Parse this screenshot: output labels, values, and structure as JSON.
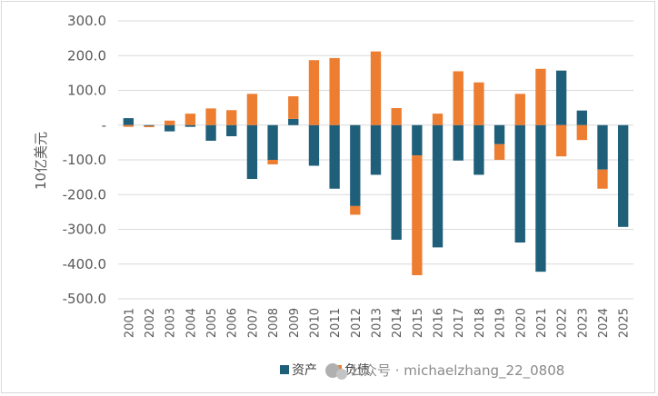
{
  "chart_data": {
    "type": "bar",
    "stacked": true,
    "title": "",
    "xlabel": "",
    "ylabel": "10亿美元",
    "ylim": [
      -500,
      300
    ],
    "yticks": [
      300,
      200,
      100,
      0,
      -100,
      -200,
      -300,
      -400,
      -500
    ],
    "ytick_labels": [
      "300.0",
      "200.0",
      "100.0",
      "-",
      "-100.0",
      "-200.0",
      "-300.0",
      "-400.0",
      "-500.0"
    ],
    "grid": true,
    "legend_position": "bottom",
    "categories": [
      "2001",
      "2002",
      "2003",
      "2004",
      "2005",
      "2006",
      "2007",
      "2008",
      "2009",
      "2010",
      "2011",
      "2012",
      "2013",
      "2014",
      "2015",
      "2016",
      "2017",
      "2018",
      "2019",
      "2020",
      "2021",
      "2022",
      "2023",
      "2024",
      "2025"
    ],
    "series": [
      {
        "name": "资产",
        "color": "#1f5f7a",
        "values": [
          20,
          -2,
          -18,
          -5,
          -45,
          -32,
          -155,
          -100,
          18,
          -117,
          -183,
          -233,
          -143,
          -330,
          -87,
          -352,
          -102,
          -143,
          -55,
          -338,
          -422,
          157,
          42,
          -128,
          -293
        ]
      },
      {
        "name": "负债",
        "color": "#ed7d31",
        "values": [
          -5,
          -4,
          13,
          33,
          48,
          43,
          90,
          -13,
          65,
          187,
          193,
          -25,
          212,
          49,
          -345,
          33,
          155,
          123,
          -45,
          90,
          162,
          -90,
          -43,
          -55,
          0
        ]
      }
    ]
  },
  "watermark": "公众号 · michaelzhang_22_0808"
}
